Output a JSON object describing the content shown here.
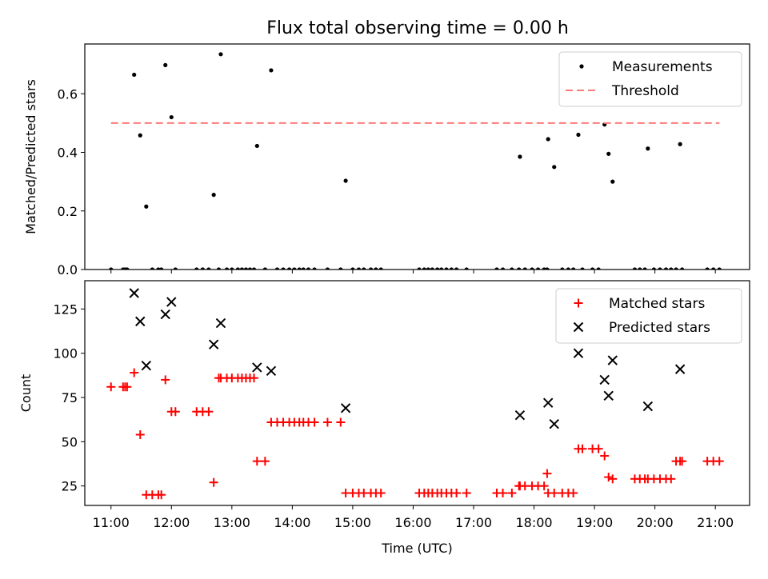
{
  "figure": {
    "title": "Flux total observing time = 0.00 h"
  },
  "chart_data": [
    {
      "type": "scatter",
      "panel": "top",
      "xlabel": "",
      "ylabel": "Matched/Predicted stars",
      "xlim": [
        "10:34",
        "21:34"
      ],
      "ylim": [
        0,
        0.77
      ],
      "yticks": [
        0.0,
        0.2,
        0.4,
        0.6
      ],
      "ytick_labels": [
        "0.0",
        "0.2",
        "0.4",
        "0.6"
      ],
      "legend": "top-right",
      "series": [
        {
          "name": "Measurements",
          "type": "scatter",
          "color": "#000000",
          "points": [
            [
              "11:00",
              0
            ],
            [
              "11:12",
              0
            ],
            [
              "11:14",
              0
            ],
            [
              "11:16",
              0
            ],
            [
              "11:23",
              0.665
            ],
            [
              "11:29",
              0.458
            ],
            [
              "11:35",
              0.215
            ],
            [
              "11:41",
              0
            ],
            [
              "11:47",
              0
            ],
            [
              "11:50",
              0
            ],
            [
              "11:54",
              0.698
            ],
            [
              "12:00",
              0.52
            ],
            [
              "12:04",
              0
            ],
            [
              "12:25",
              0
            ],
            [
              "12:31",
              0
            ],
            [
              "12:37",
              0
            ],
            [
              "12:42",
              0.255
            ],
            [
              "12:47",
              0
            ],
            [
              "12:49",
              0.735
            ],
            [
              "12:55",
              0
            ],
            [
              "13:00",
              0
            ],
            [
              "13:06",
              0
            ],
            [
              "13:10",
              0
            ],
            [
              "13:14",
              0
            ],
            [
              "13:18",
              0
            ],
            [
              "13:22",
              0
            ],
            [
              "13:25",
              0.422
            ],
            [
              "13:33",
              0
            ],
            [
              "13:39",
              0.68
            ],
            [
              "13:45",
              0
            ],
            [
              "13:51",
              0
            ],
            [
              "13:57",
              0
            ],
            [
              "14:02",
              0
            ],
            [
              "14:07",
              0
            ],
            [
              "14:11",
              0
            ],
            [
              "14:16",
              0
            ],
            [
              "14:22",
              0
            ],
            [
              "14:35",
              0
            ],
            [
              "14:48",
              0
            ],
            [
              "14:53",
              0.303
            ],
            [
              "15:00",
              0
            ],
            [
              "15:06",
              0
            ],
            [
              "15:11",
              0
            ],
            [
              "15:18",
              0
            ],
            [
              "15:23",
              0
            ],
            [
              "15:28",
              0
            ],
            [
              "16:06",
              0
            ],
            [
              "16:11",
              0
            ],
            [
              "16:15",
              0
            ],
            [
              "16:19",
              0
            ],
            [
              "16:24",
              0
            ],
            [
              "16:28",
              0
            ],
            [
              "16:33",
              0
            ],
            [
              "16:38",
              0
            ],
            [
              "16:43",
              0
            ],
            [
              "16:53",
              0
            ],
            [
              "17:23",
              0
            ],
            [
              "17:29",
              0
            ],
            [
              "17:38",
              0
            ],
            [
              "17:45",
              0
            ],
            [
              "17:46",
              0.385
            ],
            [
              "17:51",
              0
            ],
            [
              "17:58",
              0
            ],
            [
              "18:04",
              0
            ],
            [
              "18:10",
              0
            ],
            [
              "18:13",
              0
            ],
            [
              "18:14",
              0.445
            ],
            [
              "18:20",
              0.35
            ],
            [
              "18:28",
              0
            ],
            [
              "18:34",
              0
            ],
            [
              "18:39",
              0
            ],
            [
              "18:44",
              0.46
            ],
            [
              "18:48",
              0
            ],
            [
              "18:58",
              0
            ],
            [
              "19:04",
              0
            ],
            [
              "19:10",
              0.495
            ],
            [
              "19:14",
              0.395
            ],
            [
              "19:18",
              0.3
            ],
            [
              "19:40",
              0
            ],
            [
              "19:45",
              0
            ],
            [
              "19:50",
              0
            ],
            [
              "19:53",
              0.413
            ],
            [
              "19:59",
              0
            ],
            [
              "20:05",
              0
            ],
            [
              "20:11",
              0
            ],
            [
              "20:16",
              0
            ],
            [
              "20:21",
              0
            ],
            [
              "20:25",
              0.428
            ],
            [
              "20:27",
              0
            ],
            [
              "20:52",
              0
            ],
            [
              "20:58",
              0
            ],
            [
              "21:04",
              0
            ]
          ]
        },
        {
          "name": "Threshold",
          "type": "line",
          "style": "dashed",
          "color": "#ff7a7a",
          "x": [
            "11:00",
            "21:04"
          ],
          "y": [
            0.5,
            0.5
          ]
        }
      ]
    },
    {
      "type": "scatter",
      "panel": "bottom",
      "xlabel": "Time (UTC)",
      "ylabel": "Count",
      "xlim": [
        "10:34",
        "21:34"
      ],
      "ylim": [
        14,
        141
      ],
      "yticks": [
        25,
        50,
        75,
        100,
        125
      ],
      "ytick_labels": [
        "25",
        "50",
        "75",
        "100",
        "125"
      ],
      "xticks": [
        "11:00",
        "12:00",
        "13:00",
        "14:00",
        "15:00",
        "16:00",
        "17:00",
        "18:00",
        "19:00",
        "20:00",
        "21:00"
      ],
      "xtick_labels": [
        "11:00",
        "12:00",
        "13:00",
        "14:00",
        "15:00",
        "16:00",
        "17:00",
        "18:00",
        "19:00",
        "20:00",
        "21:00"
      ],
      "legend": "top-right",
      "series": [
        {
          "name": "Matched stars",
          "marker": "plus",
          "color": "#ff0000",
          "points": [
            [
              "11:00",
              81
            ],
            [
              "11:12",
              81
            ],
            [
              "11:14",
              81
            ],
            [
              "11:16",
              81
            ],
            [
              "11:23",
              89
            ],
            [
              "11:29",
              54
            ],
            [
              "11:35",
              20
            ],
            [
              "11:41",
              20
            ],
            [
              "11:47",
              20
            ],
            [
              "11:50",
              20
            ],
            [
              "11:54",
              85
            ],
            [
              "12:00",
              67
            ],
            [
              "12:04",
              67
            ],
            [
              "12:25",
              67
            ],
            [
              "12:31",
              67
            ],
            [
              "12:37",
              67
            ],
            [
              "12:42",
              27
            ],
            [
              "12:47",
              86
            ],
            [
              "12:49",
              86
            ],
            [
              "12:55",
              86
            ],
            [
              "13:00",
              86
            ],
            [
              "13:06",
              86
            ],
            [
              "13:10",
              86
            ],
            [
              "13:14",
              86
            ],
            [
              "13:18",
              86
            ],
            [
              "13:22",
              86
            ],
            [
              "13:25",
              39
            ],
            [
              "13:33",
              39
            ],
            [
              "13:39",
              61
            ],
            [
              "13:45",
              61
            ],
            [
              "13:51",
              61
            ],
            [
              "13:57",
              61
            ],
            [
              "14:02",
              61
            ],
            [
              "14:07",
              61
            ],
            [
              "14:11",
              61
            ],
            [
              "14:16",
              61
            ],
            [
              "14:22",
              61
            ],
            [
              "14:35",
              61
            ],
            [
              "14:48",
              61
            ],
            [
              "14:53",
              21
            ],
            [
              "15:00",
              21
            ],
            [
              "15:06",
              21
            ],
            [
              "15:11",
              21
            ],
            [
              "15:18",
              21
            ],
            [
              "15:23",
              21
            ],
            [
              "15:28",
              21
            ],
            [
              "16:06",
              21
            ],
            [
              "16:11",
              21
            ],
            [
              "16:15",
              21
            ],
            [
              "16:19",
              21
            ],
            [
              "16:24",
              21
            ],
            [
              "16:28",
              21
            ],
            [
              "16:33",
              21
            ],
            [
              "16:38",
              21
            ],
            [
              "16:43",
              21
            ],
            [
              "16:53",
              21
            ],
            [
              "17:23",
              21
            ],
            [
              "17:29",
              21
            ],
            [
              "17:38",
              21
            ],
            [
              "17:45",
              25
            ],
            [
              "17:46",
              25
            ],
            [
              "17:51",
              25
            ],
            [
              "17:58",
              25
            ],
            [
              "18:04",
              25
            ],
            [
              "18:10",
              25
            ],
            [
              "18:13",
              32
            ],
            [
              "18:14",
              21
            ],
            [
              "18:20",
              21
            ],
            [
              "18:28",
              21
            ],
            [
              "18:34",
              21
            ],
            [
              "18:39",
              21
            ],
            [
              "18:44",
              46
            ],
            [
              "18:48",
              46
            ],
            [
              "18:58",
              46
            ],
            [
              "19:04",
              46
            ],
            [
              "19:10",
              42
            ],
            [
              "19:14",
              30
            ],
            [
              "19:18",
              29
            ],
            [
              "19:40",
              29
            ],
            [
              "19:45",
              29
            ],
            [
              "19:50",
              29
            ],
            [
              "19:53",
              29
            ],
            [
              "19:59",
              29
            ],
            [
              "20:05",
              29
            ],
            [
              "20:11",
              29
            ],
            [
              "20:16",
              29
            ],
            [
              "20:21",
              39
            ],
            [
              "20:25",
              39
            ],
            [
              "20:27",
              39
            ],
            [
              "20:52",
              39
            ],
            [
              "20:58",
              39
            ],
            [
              "21:04",
              39
            ]
          ]
        },
        {
          "name": "Predicted stars",
          "marker": "x",
          "color": "#000000",
          "points": [
            [
              "11:23",
              134
            ],
            [
              "11:29",
              118
            ],
            [
              "11:35",
              93
            ],
            [
              "11:54",
              122
            ],
            [
              "12:00",
              129
            ],
            [
              "12:42",
              105
            ],
            [
              "12:49",
              117
            ],
            [
              "13:25",
              92
            ],
            [
              "13:39",
              90
            ],
            [
              "14:53",
              69
            ],
            [
              "17:46",
              65
            ],
            [
              "18:14",
              72
            ],
            [
              "18:20",
              60
            ],
            [
              "18:44",
              100
            ],
            [
              "19:10",
              85
            ],
            [
              "19:14",
              76
            ],
            [
              "19:18",
              96
            ],
            [
              "19:53",
              70
            ],
            [
              "20:25",
              91
            ]
          ]
        }
      ]
    }
  ]
}
